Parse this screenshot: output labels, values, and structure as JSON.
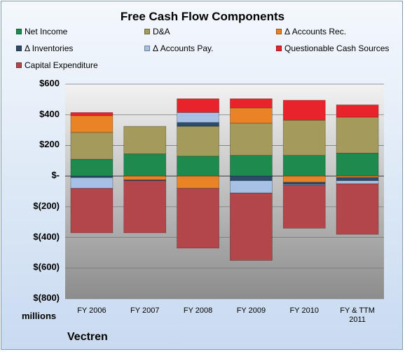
{
  "chart_data": {
    "type": "bar",
    "stacked": true,
    "title": "Free Cash Flow Components",
    "categories": [
      "FY 2006",
      "FY 2007",
      "FY 2008",
      "FY 2009",
      "FY 2010",
      "FY & TTM 2011"
    ],
    "series": [
      {
        "name": "Net Income",
        "color": "#1e8a4e",
        "values": [
          110,
          145,
          130,
          135,
          135,
          150
        ]
      },
      {
        "name": "D&A",
        "color": "#a39a5c",
        "values": [
          175,
          180,
          195,
          210,
          230,
          235
        ]
      },
      {
        "name": "Δ Accounts Rec.",
        "color": "#ea8325",
        "values": [
          110,
          -25,
          -80,
          100,
          -40,
          -10
        ]
      },
      {
        "name": "Δ Inventories",
        "color": "#2c4a6e",
        "values": [
          -10,
          -5,
          25,
          -30,
          -15,
          -20
        ]
      },
      {
        "name": "Δ Accounts Pay.",
        "color": "#a6c1e3",
        "values": [
          -70,
          0,
          65,
          -80,
          -5,
          -20
        ]
      },
      {
        "name": "Questionable Cash Sources",
        "color": "#e8232b",
        "values": [
          20,
          0,
          90,
          60,
          130,
          80
        ]
      },
      {
        "name": "Capital Expenditure",
        "color": "#b3464a",
        "values": [
          -290,
          -340,
          -390,
          -440,
          -280,
          -330
        ]
      }
    ],
    "ylim": [
      -800,
      600
    ],
    "yticks": [
      600,
      400,
      200,
      0,
      -200,
      -400,
      -600,
      -800
    ],
    "ytick_labels": [
      "$600",
      "$400",
      "$200",
      "$-",
      "$(200)",
      "$(400)",
      "$(600)",
      "$(800)"
    ],
    "ylabel": "millions",
    "legend_position": "top",
    "grid": true
  },
  "footer": {
    "company": "Vectren"
  }
}
